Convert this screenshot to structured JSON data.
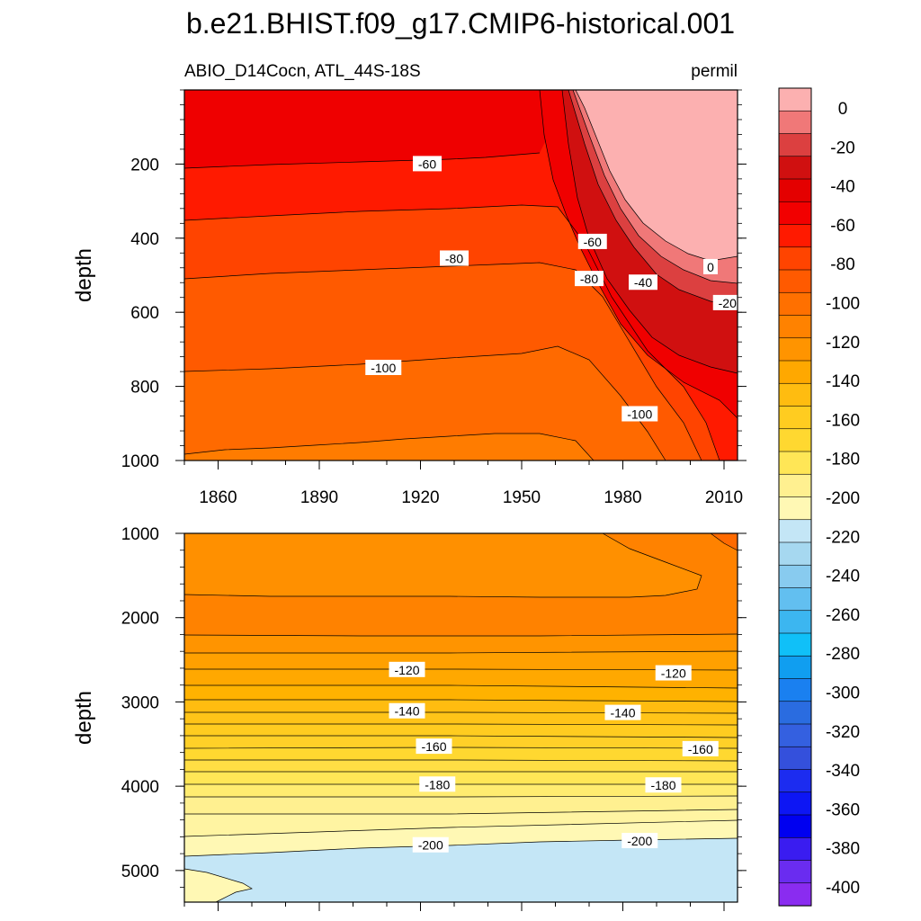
{
  "chart_data": [
    {
      "type": "heatmap",
      "panel": "top",
      "title": "b.e21.BHIST.f09_g17.CMIP6-historical.001",
      "left_subtitle": "ABIO_D14Cocn, ATL_44S-18S",
      "right_subtitle": "permil",
      "xlabel": "",
      "ylabel": "depth",
      "xlim": [
        1850,
        2014
      ],
      "ylim": [
        0,
        1000
      ],
      "y_reversed": true,
      "x_ticks": [
        1860,
        1890,
        1920,
        1950,
        1980,
        2010
      ],
      "y_ticks": [
        200,
        400,
        600,
        800,
        1000
      ],
      "contour_labels": [
        {
          "text": "-60",
          "x": 1922,
          "y": 200
        },
        {
          "text": "-80",
          "x": 1930,
          "y": 455
        },
        {
          "text": "-100",
          "x": 1909,
          "y": 750
        },
        {
          "text": "-60",
          "x": 1971,
          "y": 410
        },
        {
          "text": "-80",
          "x": 1970,
          "y": 510
        },
        {
          "text": "-40",
          "x": 1986,
          "y": 520
        },
        {
          "text": "0",
          "x": 2006,
          "y": 478
        },
        {
          "text": "-20",
          "x": 2011,
          "y": 575
        },
        {
          "text": "-100",
          "x": 1985,
          "y": 875
        }
      ]
    },
    {
      "type": "heatmap",
      "panel": "bottom",
      "xlabel": "",
      "ylabel": "depth",
      "xlim": [
        1850,
        2014
      ],
      "ylim": [
        1000,
        5375
      ],
      "y_reversed": true,
      "y_ticks": [
        1000,
        2000,
        3000,
        4000,
        5000
      ],
      "contour_labels": [
        {
          "text": "-120",
          "x": 1916,
          "y": 2620
        },
        {
          "text": "-120",
          "x": 1995,
          "y": 2660
        },
        {
          "text": "-140",
          "x": 1916,
          "y": 3110
        },
        {
          "text": "-140",
          "x": 1980,
          "y": 3130
        },
        {
          "text": "-160",
          "x": 1924,
          "y": 3530
        },
        {
          "text": "-160",
          "x": 2003,
          "y": 3560
        },
        {
          "text": "-180",
          "x": 1925,
          "y": 3980
        },
        {
          "text": "-180",
          "x": 1992,
          "y": 3990
        },
        {
          "text": "-200",
          "x": 1923,
          "y": 4700
        },
        {
          "text": "-200",
          "x": 1985,
          "y": 4650
        }
      ]
    }
  ],
  "colorbar": {
    "labels": [
      "0",
      "-20",
      "-40",
      "-60",
      "-80",
      "-100",
      "-120",
      "-140",
      "-160",
      "-180",
      "-200",
      "-220",
      "-240",
      "-260",
      "-280",
      "-300",
      "-320",
      "-340",
      "-360",
      "-380",
      "-400"
    ],
    "colors": [
      "#fcb0b0",
      "#f07878",
      "#dc4040",
      "#d01010",
      "#e40000",
      "#f20000",
      "#ff1a00",
      "#ff4400",
      "#ff5a00",
      "#ff7000",
      "#ff8200",
      "#ff9400",
      "#ffa800",
      "#ffbc10",
      "#ffcc20",
      "#ffd830",
      "#ffe656",
      "#fff090",
      "#fff8b4",
      "#c4e6f6",
      "#a6d8f0",
      "#88cbef",
      "#62bff0",
      "#3cb6f0",
      "#10c0f8",
      "#109ef0",
      "#1a80f0",
      "#2a6ce0",
      "#3460e0",
      "#3450dc",
      "#1c2cf0",
      "#0d16f4",
      "#0000f0",
      "#3a1cf0",
      "#6a2cf0",
      "#8a2cf0"
    ]
  }
}
